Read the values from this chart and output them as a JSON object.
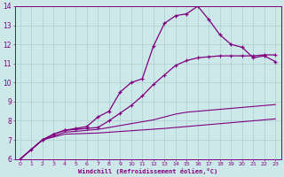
{
  "xlabel": "Windchill (Refroidissement éolien,°C)",
  "bg_color": "#cce8e8",
  "line_color": "#800080",
  "grid_color": "#aacfcf",
  "xlim": [
    -0.5,
    23.5
  ],
  "ylim": [
    6,
    14
  ],
  "xticks": [
    0,
    1,
    2,
    3,
    4,
    5,
    6,
    7,
    8,
    9,
    10,
    11,
    12,
    13,
    14,
    15,
    16,
    17,
    18,
    19,
    20,
    21,
    22,
    23
  ],
  "yticks": [
    6,
    7,
    8,
    9,
    10,
    11,
    12,
    13,
    14
  ],
  "curve1_x": [
    0,
    1,
    2,
    3,
    4,
    5,
    6,
    7,
    8,
    9,
    10,
    11,
    12,
    13,
    14,
    15,
    16,
    17,
    18,
    19,
    20,
    21,
    22,
    23
  ],
  "curve1_y": [
    6.0,
    6.5,
    7.0,
    7.3,
    7.5,
    7.6,
    7.7,
    8.2,
    8.5,
    9.5,
    10.0,
    10.2,
    11.9,
    13.1,
    13.5,
    13.6,
    14.0,
    13.3,
    12.5,
    12.0,
    11.85,
    11.3,
    11.4,
    11.1
  ],
  "curve1_markers": true,
  "curve2_x": [
    0,
    2,
    3,
    4,
    5,
    6,
    7,
    8,
    9,
    10,
    11,
    12,
    13,
    14,
    15,
    16,
    17,
    18,
    19,
    20,
    21,
    22,
    23
  ],
  "curve2_y": [
    6.0,
    7.0,
    7.3,
    7.5,
    7.55,
    7.6,
    7.65,
    8.0,
    8.4,
    8.8,
    9.3,
    9.9,
    10.4,
    10.9,
    11.15,
    11.3,
    11.35,
    11.4,
    11.4,
    11.4,
    11.4,
    11.45,
    11.45
  ],
  "curve2_markers": true,
  "curve3_x": [
    0,
    2,
    3,
    4,
    5,
    6,
    7,
    8,
    9,
    10,
    11,
    12,
    13,
    14,
    15,
    16,
    17,
    18,
    19,
    20,
    21,
    22,
    23
  ],
  "curve3_y": [
    6.0,
    7.0,
    7.2,
    7.4,
    7.45,
    7.5,
    7.55,
    7.65,
    7.75,
    7.85,
    7.95,
    8.05,
    8.2,
    8.35,
    8.45,
    8.5,
    8.55,
    8.6,
    8.65,
    8.7,
    8.75,
    8.8,
    8.85
  ],
  "curve3_markers": false,
  "curve4_x": [
    0,
    2,
    3,
    4,
    5,
    6,
    7,
    8,
    9,
    10,
    11,
    12,
    13,
    14,
    15,
    16,
    17,
    18,
    19,
    20,
    21,
    22,
    23
  ],
  "curve4_y": [
    6.0,
    7.0,
    7.15,
    7.3,
    7.32,
    7.34,
    7.36,
    7.4,
    7.44,
    7.48,
    7.52,
    7.56,
    7.6,
    7.65,
    7.7,
    7.75,
    7.8,
    7.85,
    7.9,
    7.95,
    8.0,
    8.05,
    8.1
  ],
  "curve4_markers": false
}
